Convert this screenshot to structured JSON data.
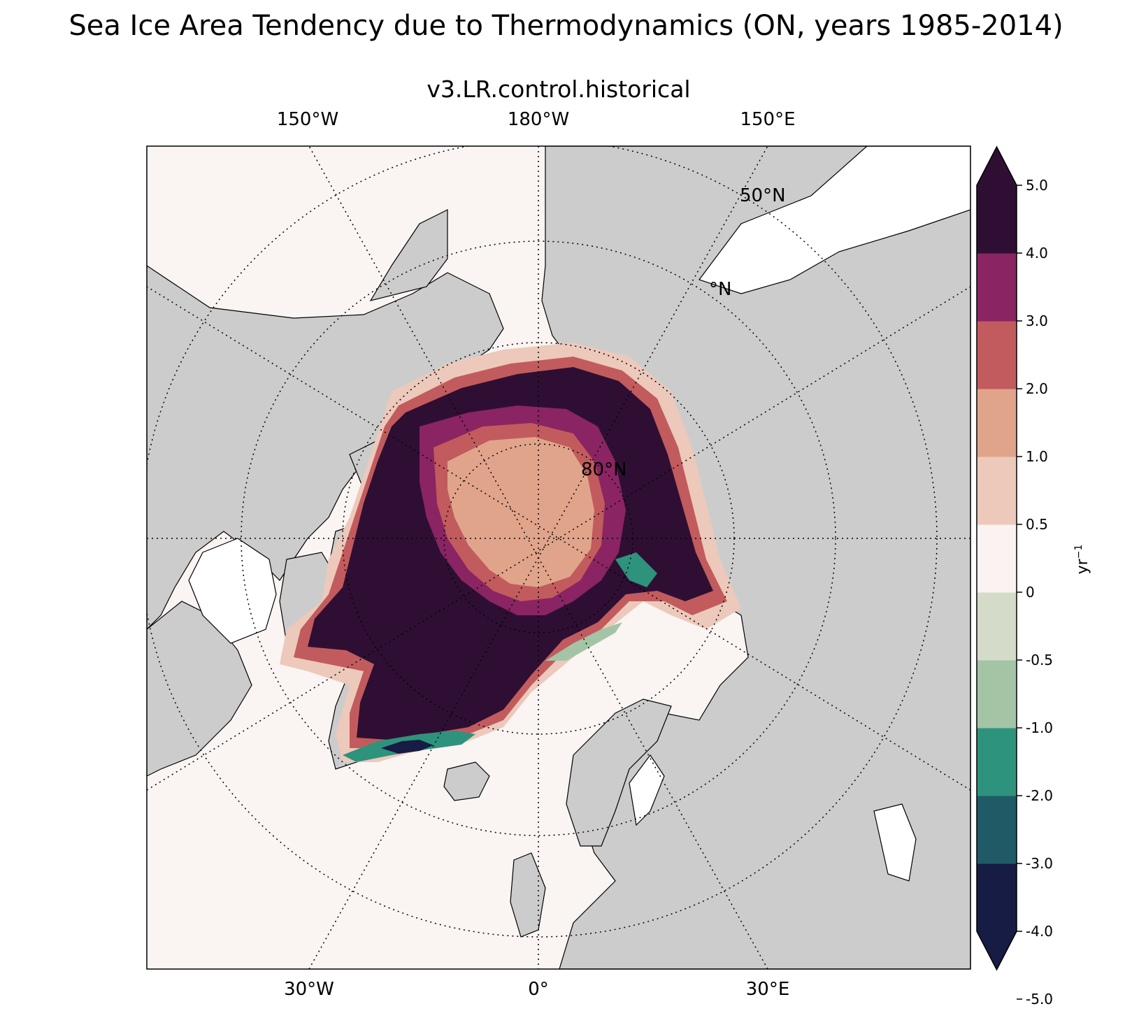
{
  "title": "Sea Ice Area Tendency due to Thermodynamics (ON, years 1985-2014)",
  "subtitle": "v3.LR.control.historical",
  "map": {
    "projection": "north polar stereographic",
    "longitude_labels_top": [
      "150°W",
      "180°W",
      "150°E"
    ],
    "longitude_labels_bottom": [
      "30°W",
      "0°",
      "30°E"
    ],
    "latitude_labels": [
      "50°N",
      "°N",
      "80°N"
    ],
    "land_color": "#cccccc",
    "ocean_color": "#faf4f2"
  },
  "colorbar": {
    "unit": "yr",
    "unit_exponent": "−1",
    "tick_labels": [
      "5.0",
      "4.0",
      "3.0",
      "2.0",
      "1.0",
      "0.5",
      "0",
      "-0.5",
      "-1.0",
      "-2.0",
      "-3.0",
      "-4.0",
      "-5.0"
    ],
    "levels": [
      -5,
      -4,
      -3,
      -2,
      -1,
      -0.5,
      0.5,
      1,
      2,
      3,
      4,
      5
    ],
    "colors": [
      "#161c43",
      "#1f5a66",
      "#2e937c",
      "#a4c4a6",
      "#d4dbc9",
      "#fbf3f1",
      "#ecc9bb",
      "#e0a48b",
      "#c25b5d",
      "#8a2462",
      "#2e0f33"
    ],
    "extend": "both"
  }
}
